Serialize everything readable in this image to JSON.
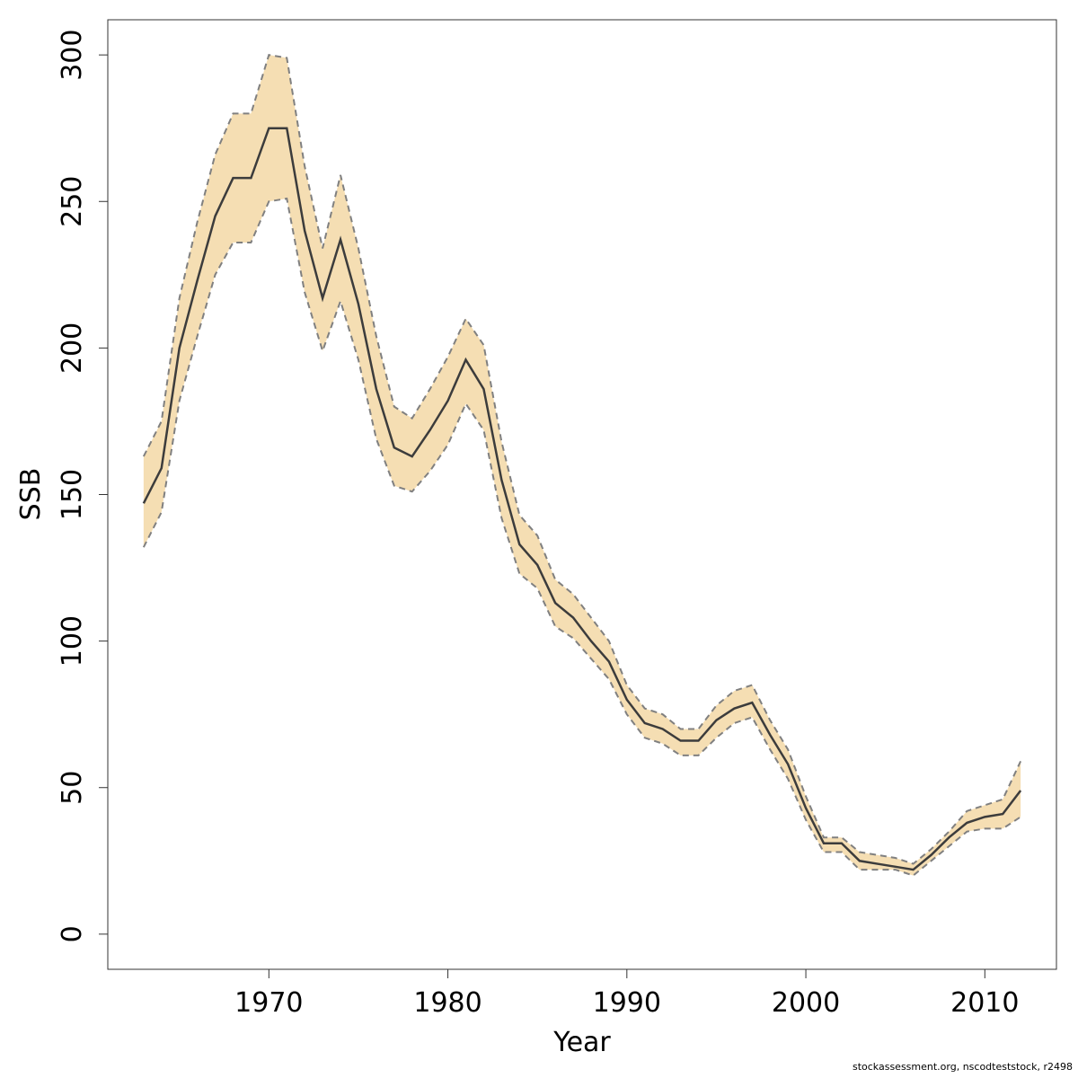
{
  "chart_data": {
    "type": "line",
    "xlabel": "Year",
    "ylabel": "SSB",
    "xlim": [
      1961,
      2014
    ],
    "ylim": [
      -12,
      312
    ],
    "xticks": [
      1970,
      1980,
      1990,
      2000,
      2010
    ],
    "yticks": [
      0,
      50,
      100,
      150,
      200,
      250,
      300
    ],
    "grid": false,
    "colors": {
      "band": "#f5deb3",
      "line": "#3c3c3c",
      "bounds": "#808080"
    },
    "x": [
      1963,
      1964,
      1965,
      1966,
      1967,
      1968,
      1969,
      1970,
      1971,
      1972,
      1973,
      1974,
      1975,
      1976,
      1977,
      1978,
      1979,
      1980,
      1981,
      1982,
      1983,
      1984,
      1985,
      1986,
      1987,
      1988,
      1989,
      1990,
      1991,
      1992,
      1993,
      1994,
      1995,
      1996,
      1997,
      1998,
      1999,
      2000,
      2001,
      2002,
      2003,
      2004,
      2005,
      2006,
      2007,
      2008,
      2009,
      2010,
      2011,
      2012
    ],
    "series": [
      {
        "values": [
          147,
          159,
          200,
          223,
          245,
          258,
          258,
          275,
          275,
          240,
          217,
          237,
          215,
          186,
          166,
          163,
          172,
          182,
          196,
          186,
          155,
          133,
          126,
          113,
          108,
          100,
          93,
          80,
          72,
          70,
          66,
          66,
          73,
          77,
          79,
          68,
          58,
          43,
          31,
          31,
          25,
          24,
          23,
          22,
          27,
          33,
          38,
          40,
          41,
          49
        ]
      },
      {
        "values": [
          132,
          144,
          182,
          204,
          225,
          236,
          236,
          250,
          251,
          219,
          199,
          216,
          196,
          169,
          153,
          151,
          158,
          167,
          181,
          172,
          142,
          123,
          118,
          105,
          101,
          94,
          87,
          75,
          67,
          65,
          61,
          61,
          67,
          72,
          74,
          63,
          53,
          39,
          28,
          28,
          22,
          22,
          22,
          20,
          25,
          30,
          35,
          36,
          36,
          40
        ]
      },
      {
        "values": [
          163,
          175,
          217,
          243,
          266,
          280,
          280,
          300,
          299,
          262,
          234,
          259,
          234,
          204,
          180,
          176,
          186,
          197,
          210,
          201,
          168,
          143,
          136,
          121,
          116,
          108,
          100,
          85,
          77,
          75,
          70,
          70,
          78,
          83,
          85,
          73,
          63,
          47,
          33,
          33,
          28,
          27,
          26,
          24,
          29,
          35,
          42,
          44,
          46,
          59
        ]
      }
    ]
  },
  "footer": "stockassessment.org, nscodteststock, r2498"
}
